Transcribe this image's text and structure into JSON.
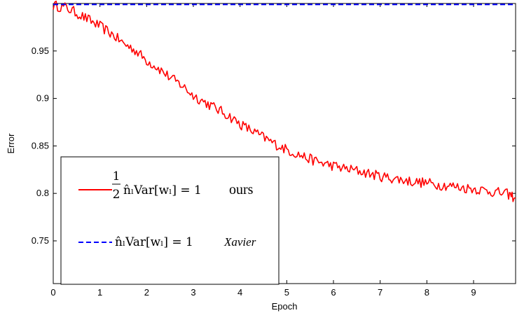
{
  "chart_data": {
    "type": "line",
    "xlabel": "Epoch",
    "ylabel": "Error",
    "xlim": [
      0,
      9.9
    ],
    "ylim": [
      0.705,
      1.0
    ],
    "xticks": [
      0,
      1,
      2,
      3,
      4,
      5,
      6,
      7,
      8,
      9
    ],
    "yticks": [
      0.75,
      0.8,
      0.85,
      0.9,
      0.95
    ],
    "ytick_labels": [
      "0.75",
      "0.8",
      "0.85",
      "0.9",
      "0.95"
    ],
    "grid": false,
    "legend_position": "bottom-left",
    "series": [
      {
        "color": "#ff0000",
        "style": "solid",
        "legend_label": {
          "fraction_num": "1",
          "fraction_den": "2",
          "formula": "n̂ₗVar[wₗ] = 1",
          "tag": "ours"
        },
        "x": [
          0,
          0.25,
          0.5,
          0.75,
          1,
          1.25,
          1.5,
          1.75,
          2,
          2.25,
          2.5,
          2.75,
          3,
          3.25,
          3.5,
          3.75,
          4,
          4.25,
          4.5,
          4.75,
          5,
          5.25,
          5.5,
          5.75,
          6,
          6.25,
          6.5,
          6.75,
          7,
          7.25,
          7.5,
          7.75,
          8,
          8.25,
          8.5,
          8.75,
          9,
          9.25,
          9.5,
          9.75,
          9.9
        ],
        "y": [
          0.998,
          0.996,
          0.99,
          0.983,
          0.976,
          0.968,
          0.958,
          0.951,
          0.94,
          0.932,
          0.922,
          0.914,
          0.903,
          0.896,
          0.889,
          0.882,
          0.873,
          0.866,
          0.859,
          0.852,
          0.846,
          0.841,
          0.836,
          0.832,
          0.829,
          0.826,
          0.824,
          0.821,
          0.818,
          0.816,
          0.814,
          0.812,
          0.811,
          0.809,
          0.808,
          0.806,
          0.805,
          0.803,
          0.801,
          0.799,
          0.795
        ]
      },
      {
        "color": "#0000ff",
        "style": "dashed",
        "legend_label": {
          "formula": "n̂ₗVar[wₗ] = 1",
          "tag": "Xavier"
        },
        "x": [
          0,
          9.9
        ],
        "y": [
          0.999,
          0.999
        ]
      }
    ]
  }
}
